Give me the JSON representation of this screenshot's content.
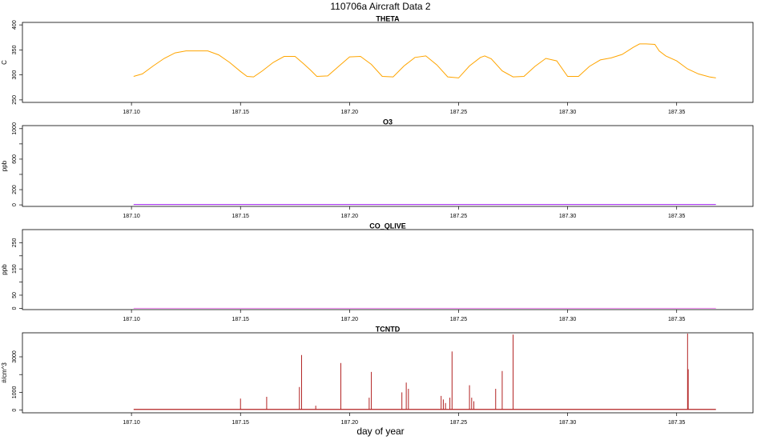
{
  "figure": {
    "title": "110706a   Aircraft Data 2",
    "xlabel": "day of year"
  },
  "colors": {
    "theta": "#ffa500",
    "o3": "#a020f0",
    "co": "#ee82ee",
    "tcntd": "#b22222"
  },
  "chart_data": [
    {
      "type": "line",
      "title": "THETA",
      "ylabel": "C",
      "xlim": [
        187.05,
        187.385
      ],
      "ylim": [
        245,
        405
      ],
      "xticks": [
        187.1,
        187.15,
        187.2,
        187.25,
        187.3,
        187.35
      ],
      "xticklabels": [
        "187.10",
        "187.15",
        "187.20",
        "187.25",
        "187.30",
        "187.35"
      ],
      "yticks": [
        250,
        300,
        350,
        400
      ],
      "yticklabels": [
        "250",
        "300",
        "350",
        "400"
      ],
      "series": [
        {
          "color": "#ffa500",
          "x": [
            187.101,
            187.105,
            187.11,
            187.115,
            187.12,
            187.125,
            187.13,
            187.135,
            187.14,
            187.145,
            187.15,
            187.153,
            187.156,
            187.16,
            187.165,
            187.17,
            187.175,
            187.179,
            187.182,
            187.185,
            187.19,
            187.195,
            187.2,
            187.205,
            187.21,
            187.215,
            187.22,
            187.225,
            187.23,
            187.235,
            187.24,
            187.245,
            187.25,
            187.255,
            187.26,
            187.262,
            187.265,
            187.27,
            187.275,
            187.28,
            187.285,
            187.29,
            187.295,
            187.3,
            187.305,
            187.31,
            187.315,
            187.32,
            187.325,
            187.33,
            187.333,
            187.336,
            187.34,
            187.342,
            187.345,
            187.35,
            187.355,
            187.36,
            187.365,
            187.368
          ],
          "y": [
            297,
            302,
            318,
            333,
            344,
            348,
            348,
            348,
            340,
            325,
            307,
            297,
            296,
            308,
            325,
            337,
            337,
            322,
            310,
            297,
            298,
            317,
            336,
            337,
            321,
            297,
            296,
            318,
            335,
            338,
            320,
            296,
            294,
            318,
            335,
            338,
            332,
            308,
            296,
            297,
            317,
            333,
            328,
            297,
            297,
            317,
            330,
            334,
            341,
            355,
            362,
            362,
            361,
            348,
            338,
            328,
            312,
            302,
            296,
            294
          ]
        }
      ]
    },
    {
      "type": "line",
      "title": "O3",
      "ylabel": "ppb",
      "xlim": [
        187.05,
        187.385
      ],
      "ylim": [
        -20,
        1040
      ],
      "xticks": [
        187.1,
        187.15,
        187.2,
        187.25,
        187.3,
        187.35
      ],
      "xticklabels": [
        "187.10",
        "187.15",
        "187.20",
        "187.25",
        "187.30",
        "187.35"
      ],
      "yticks": [
        0,
        200,
        600,
        1000
      ],
      "yticklabels": [
        "0",
        "200",
        "600",
        "1000"
      ],
      "series": [
        {
          "color": "#a020f0",
          "x": [
            187.101,
            187.368
          ],
          "y": [
            5,
            5
          ]
        }
      ]
    },
    {
      "type": "line",
      "title": "CO_QLIVE",
      "ylabel": "ppb",
      "xlim": [
        187.05,
        187.385
      ],
      "ylim": [
        -5,
        300
      ],
      "xticks": [
        187.1,
        187.15,
        187.2,
        187.25,
        187.3,
        187.35
      ],
      "xticklabels": [
        "187.10",
        "187.15",
        "187.20",
        "187.25",
        "187.30",
        "187.35"
      ],
      "yticks": [
        0,
        50,
        150,
        250
      ],
      "yticklabels": [
        "0",
        "50",
        "150",
        "250"
      ],
      "series": [
        {
          "color": "#ee82ee",
          "x": [
            187.101,
            187.368
          ],
          "y": [
            0,
            0
          ]
        }
      ]
    },
    {
      "type": "line",
      "title": "TCNTD",
      "ylabel": "#/cm^3",
      "xlim": [
        187.05,
        187.385
      ],
      "ylim": [
        -150,
        4350
      ],
      "xticks": [
        187.1,
        187.15,
        187.2,
        187.25,
        187.3,
        187.35
      ],
      "xticklabels": [
        "187.10",
        "187.15",
        "187.20",
        "187.25",
        "187.30",
        "187.35"
      ],
      "yticks": [
        0,
        1000,
        3000
      ],
      "yticklabels": [
        "0",
        "1000",
        "3000"
      ],
      "baseline": 40,
      "spikes": [
        {
          "x": 187.15,
          "y": 650
        },
        {
          "x": 187.162,
          "y": 750
        },
        {
          "x": 187.177,
          "y": 1300
        },
        {
          "x": 187.178,
          "y": 3100
        },
        {
          "x": 187.1845,
          "y": 250
        },
        {
          "x": 187.196,
          "y": 2650
        },
        {
          "x": 187.209,
          "y": 700
        },
        {
          "x": 187.21,
          "y": 2150
        },
        {
          "x": 187.224,
          "y": 1000
        },
        {
          "x": 187.226,
          "y": 1550
        },
        {
          "x": 187.227,
          "y": 1200
        },
        {
          "x": 187.242,
          "y": 800
        },
        {
          "x": 187.243,
          "y": 600
        },
        {
          "x": 187.244,
          "y": 400
        },
        {
          "x": 187.246,
          "y": 700
        },
        {
          "x": 187.247,
          "y": 3300
        },
        {
          "x": 187.255,
          "y": 1400
        },
        {
          "x": 187.256,
          "y": 700
        },
        {
          "x": 187.257,
          "y": 500
        },
        {
          "x": 187.267,
          "y": 1200
        },
        {
          "x": 187.27,
          "y": 2200
        },
        {
          "x": 187.275,
          "y": 4250
        },
        {
          "x": 187.355,
          "y": 4550
        },
        {
          "x": 187.3553,
          "y": 2300
        }
      ]
    }
  ]
}
